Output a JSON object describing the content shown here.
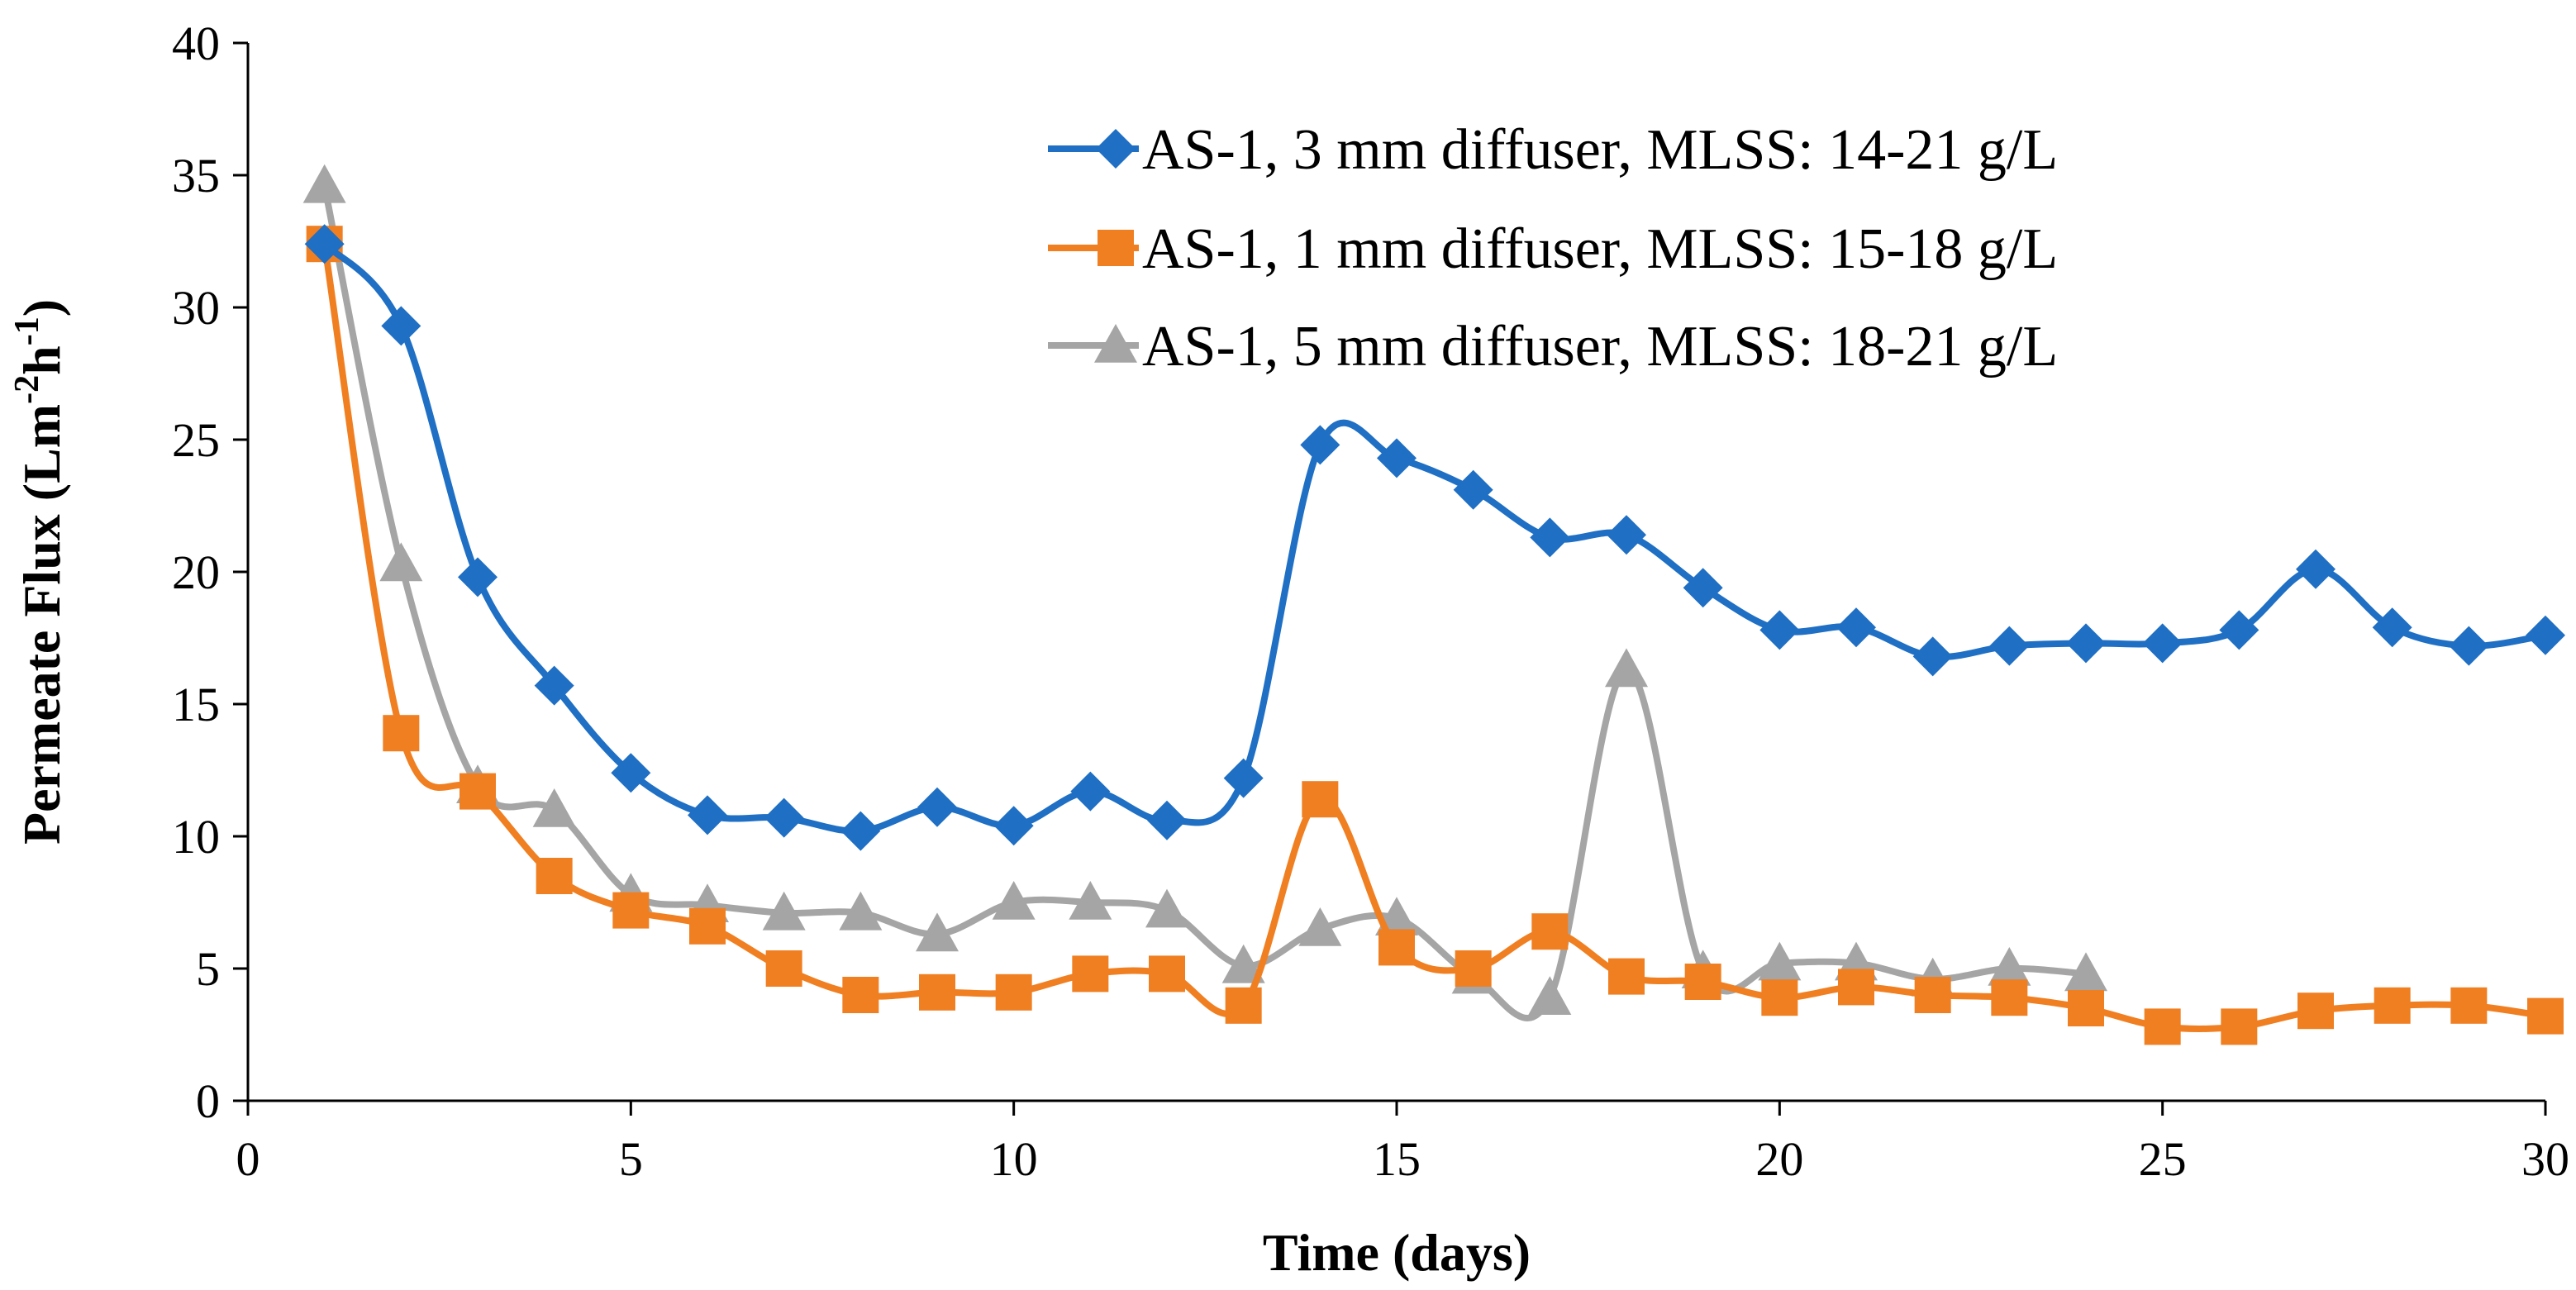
{
  "chart_data": {
    "type": "line",
    "title": "",
    "xlabel": "Time (days)",
    "ylabel": "Permeate Flux (Lm",
    "ylabel_sup1": "-2",
    "ylabel_mid": "h",
    "ylabel_sup2": "-1",
    "ylabel_end": ")",
    "xlim": [
      0,
      30
    ],
    "ylim": [
      0,
      40
    ],
    "x_ticks": [
      "0",
      "5",
      "10",
      "15",
      "20",
      "25",
      "30"
    ],
    "y_ticks": [
      "0",
      "5",
      "10",
      "15",
      "20",
      "25",
      "30",
      "35",
      "40"
    ],
    "grid": false,
    "legend_position": "top-right",
    "series": [
      {
        "name": "AS-1, 3 mm diffuser, MLSS: 14-21 g/L",
        "color": "#1f6fc4",
        "marker": "diamond",
        "x": [
          1,
          2,
          3,
          4,
          5,
          6,
          7,
          8,
          9,
          10,
          11,
          12,
          13,
          14,
          15,
          16,
          17,
          18,
          19,
          20,
          21,
          22,
          23,
          24,
          25,
          26,
          27,
          28,
          29,
          30
        ],
        "values": [
          32.4,
          29.3,
          19.8,
          15.7,
          12.4,
          10.8,
          10.7,
          10.2,
          11.1,
          10.4,
          11.7,
          10.6,
          12.2,
          24.8,
          24.3,
          23.1,
          21.3,
          21.4,
          19.4,
          17.8,
          17.9,
          16.8,
          17.2,
          17.3,
          17.3,
          17.8,
          20.1,
          17.9,
          17.2,
          17.6
        ]
      },
      {
        "name": "AS-1, 1 mm diffuser, MLSS: 15-18 g/L",
        "color": "#f07f22",
        "marker": "square",
        "x": [
          1,
          2,
          3,
          4,
          5,
          6,
          7,
          8,
          9,
          10,
          11,
          12,
          13,
          14,
          15,
          16,
          17,
          18,
          19,
          20,
          21,
          22,
          23,
          24,
          25,
          26,
          27,
          28,
          29,
          30
        ],
        "values": [
          32.4,
          13.9,
          11.7,
          8.5,
          7.2,
          6.6,
          5.0,
          4.0,
          4.1,
          4.1,
          4.8,
          4.8,
          3.6,
          11.4,
          5.8,
          5.0,
          6.4,
          4.7,
          4.5,
          3.9,
          4.3,
          4.0,
          3.9,
          3.5,
          2.8,
          2.8,
          3.4,
          3.6,
          3.6,
          3.2
        ]
      },
      {
        "name": "AS-1, 5 mm diffuser, MLSS: 18-21 g/L",
        "color": "#a5a5a5",
        "marker": "triangle",
        "x": [
          1,
          2,
          3,
          4,
          5,
          6,
          7,
          8,
          9,
          10,
          11,
          12,
          13,
          14,
          15,
          16,
          17,
          18,
          19,
          20,
          21,
          22,
          23,
          24
        ],
        "values": [
          34.6,
          20.3,
          11.9,
          11.0,
          7.8,
          7.4,
          7.1,
          7.1,
          6.3,
          7.5,
          7.5,
          7.2,
          5.1,
          6.5,
          6.9,
          4.7,
          3.9,
          16.3,
          4.9,
          5.2,
          5.2,
          4.6,
          5.0,
          4.8
        ]
      }
    ]
  }
}
